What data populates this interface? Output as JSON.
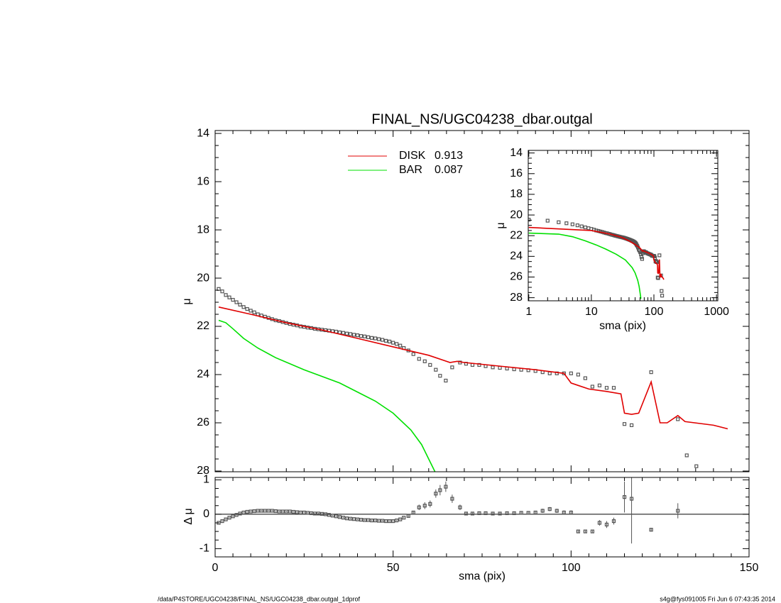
{
  "title": "FINAL_NS/UGC04238_dbar.outgal",
  "footer_left": "/data/P4STORE/UGC04238/FINAL_NS/UGC04238_dbar.outgal_1dprof",
  "footer_right": "s4g@fys091005  Fri Jun  6 07:43:35 2014",
  "chart_data": [
    {
      "type": "line",
      "y_label": "μ",
      "xlim": [
        0,
        150
      ],
      "ylim": [
        13.88,
        28.03
      ],
      "y_reversed": true,
      "yticks": [
        14,
        16,
        18,
        20,
        22,
        24,
        26,
        28
      ],
      "series": [
        {
          "style": "points",
          "color": "#555555",
          "x": [
            1,
            2,
            3,
            4,
            5,
            6,
            7,
            8,
            9,
            10,
            11,
            12,
            13,
            14,
            15,
            16,
            17,
            18,
            19,
            20,
            21,
            22,
            23,
            24,
            25,
            26,
            27,
            28,
            29,
            30,
            31,
            32,
            33,
            34,
            35,
            36,
            37,
            38,
            39,
            40,
            41,
            42,
            43,
            44,
            45,
            46,
            47,
            48,
            49,
            50,
            51,
            52,
            53,
            54.3,
            55.7,
            57.3,
            58.9,
            60.4,
            62,
            63.2,
            64.8,
            66.6,
            68.8,
            70.5,
            72.3,
            74.2,
            76,
            78,
            80,
            82,
            84,
            86,
            88,
            90,
            92,
            94,
            96,
            98,
            100,
            102,
            104,
            106,
            108,
            110,
            112,
            115,
            117,
            122.5,
            130,
            132.5,
            135.2
          ],
          "values": [
            20.45,
            20.55,
            20.7,
            20.8,
            20.9,
            21.0,
            21.1,
            21.2,
            21.28,
            21.35,
            21.42,
            21.5,
            21.55,
            21.6,
            21.65,
            21.7,
            21.75,
            21.78,
            21.82,
            21.86,
            21.9,
            21.93,
            21.96,
            22.0,
            22.02,
            22.05,
            22.07,
            22.1,
            22.12,
            22.14,
            22.16,
            22.18,
            22.2,
            22.22,
            22.25,
            22.27,
            22.3,
            22.32,
            22.35,
            22.37,
            22.4,
            22.42,
            22.45,
            22.48,
            22.5,
            22.53,
            22.56,
            22.6,
            22.63,
            22.68,
            22.73,
            22.8,
            22.9,
            23.0,
            23.15,
            23.35,
            23.45,
            23.6,
            23.8,
            24.05,
            24.25,
            23.7,
            23.5,
            23.55,
            23.6,
            23.6,
            23.65,
            23.7,
            23.72,
            23.75,
            23.78,
            23.8,
            23.82,
            23.85,
            23.9,
            23.95,
            23.95,
            23.95,
            23.95,
            24.0,
            24.15,
            24.5,
            24.45,
            24.55,
            24.55,
            26.05,
            26.1,
            23.9,
            25.85,
            27.35,
            27.8
          ]
        },
        {
          "style": "line",
          "name": "DISK",
          "fraction": 0.913,
          "color": "#e00000",
          "x": [
            1,
            10,
            20,
            30,
            40,
            50,
            60,
            66,
            68,
            70,
            80,
            90,
            98,
            100,
            102,
            105,
            110,
            114,
            115,
            117,
            119,
            122.5,
            125,
            127,
            130,
            132,
            140,
            144
          ],
          "values": [
            21.2,
            21.5,
            21.85,
            22.15,
            22.5,
            22.85,
            23.2,
            23.5,
            23.45,
            23.5,
            23.65,
            23.8,
            23.95,
            24.35,
            24.45,
            24.6,
            24.7,
            24.8,
            25.6,
            25.65,
            25.6,
            24.3,
            26.0,
            26.0,
            25.7,
            25.95,
            26.1,
            26.25
          ]
        },
        {
          "style": "line",
          "name": "BAR",
          "fraction": 0.087,
          "color": "#00e000",
          "x": [
            1,
            3,
            5,
            8,
            12,
            17,
            25,
            35,
            45,
            50,
            55,
            58,
            60,
            62
          ],
          "values": [
            21.75,
            21.85,
            22.1,
            22.5,
            22.9,
            23.3,
            23.8,
            24.35,
            25.1,
            25.6,
            26.3,
            26.9,
            27.5,
            28.1
          ]
        }
      ]
    },
    {
      "type": "errorbar",
      "x_label": "sma (pix)",
      "y_label": "Δ μ",
      "xlim": [
        0,
        150
      ],
      "xticks": [
        0,
        50,
        100,
        150
      ],
      "ylim": [
        -1.24,
        1.07
      ],
      "yticks": [
        1,
        0,
        -1
      ],
      "zero_line": true,
      "color": "#555555",
      "x": [
        1,
        2,
        3,
        4,
        5,
        6,
        7,
        8,
        9,
        10,
        11,
        12,
        13,
        14,
        15,
        16,
        17,
        18,
        19,
        20,
        21,
        22,
        23,
        24,
        25,
        26,
        27,
        28,
        29,
        30,
        31,
        32,
        33,
        34,
        35,
        36,
        37,
        38,
        39,
        40,
        41,
        42,
        43,
        44,
        45,
        46,
        47,
        48,
        49,
        50,
        51,
        52,
        53,
        54.3,
        55.7,
        57.3,
        58.9,
        60.4,
        62,
        63.2,
        64.8,
        66.6,
        68.8,
        70.5,
        72.3,
        74.2,
        76,
        78,
        80,
        82,
        84,
        86,
        88,
        90,
        92,
        94,
        96,
        98,
        100,
        102,
        104,
        106,
        108,
        110,
        112,
        115,
        117,
        122.5,
        130,
        132.5,
        135.2
      ],
      "values": [
        -0.25,
        -0.2,
        -0.15,
        -0.1,
        -0.06,
        -0.02,
        0.02,
        0.05,
        0.07,
        0.08,
        0.09,
        0.1,
        0.1,
        0.1,
        0.1,
        0.1,
        0.09,
        0.08,
        0.08,
        0.08,
        0.08,
        0.07,
        0.06,
        0.05,
        0.05,
        0.04,
        0.03,
        0.02,
        0.02,
        0.01,
        0,
        -0.02,
        -0.04,
        -0.06,
        -0.08,
        -0.1,
        -0.12,
        -0.13,
        -0.14,
        -0.15,
        -0.16,
        -0.17,
        -0.17,
        -0.18,
        -0.18,
        -0.19,
        -0.19,
        -0.2,
        -0.2,
        -0.2,
        -0.18,
        -0.15,
        -0.1,
        -0.05,
        0.05,
        0.2,
        0.25,
        0.3,
        0.6,
        0.7,
        0.8,
        0.45,
        0.2,
        0.02,
        0.02,
        0.03,
        0.03,
        0.02,
        0.02,
        0.03,
        0.03,
        0.04,
        0.04,
        0.05,
        0.1,
        0.15,
        0.1,
        0.05,
        0.05,
        -0.5,
        -0.5,
        -0.5,
        -0.25,
        -0.3,
        -0.2,
        0.5,
        0.45,
        -0.45,
        0.1,
        null,
        null
      ],
      "errors": [
        0.02,
        0.02,
        0.02,
        0.02,
        0.02,
        0.02,
        0.02,
        0.02,
        0.02,
        0.02,
        0.02,
        0.02,
        0.02,
        0.02,
        0.02,
        0.02,
        0.02,
        0.02,
        0.02,
        0.02,
        0.02,
        0.02,
        0.02,
        0.02,
        0.02,
        0.02,
        0.02,
        0.02,
        0.02,
        0.02,
        0.02,
        0.02,
        0.02,
        0.02,
        0.02,
        0.02,
        0.02,
        0.02,
        0.02,
        0.02,
        0.02,
        0.02,
        0.02,
        0.02,
        0.02,
        0.02,
        0.02,
        0.02,
        0.02,
        0.02,
        0.02,
        0.02,
        0.02,
        0.05,
        0.05,
        0.08,
        0.1,
        0.1,
        0.12,
        0.15,
        0.15,
        0.12,
        0.08,
        0.04,
        0.04,
        0.04,
        0.04,
        0.04,
        0.04,
        0.04,
        0.04,
        0.04,
        0.04,
        0.04,
        0.06,
        0.06,
        0.06,
        0.06,
        0.06,
        0.03,
        0.03,
        0.03,
        0.08,
        0.1,
        0.1,
        0.45,
        1.3,
        0.05,
        0.22,
        null,
        null
      ]
    },
    {
      "type": "inset",
      "x_label": "sma (pix)",
      "y_label": "μ",
      "xlog": true,
      "xlim": [
        0.98,
        1050
      ],
      "xticks": [
        1,
        10,
        100,
        1000
      ],
      "ylim": [
        13.75,
        28.3
      ],
      "y_reversed": true,
      "yticks": [
        14,
        16,
        18,
        20,
        22,
        24,
        26,
        28
      ]
    }
  ]
}
